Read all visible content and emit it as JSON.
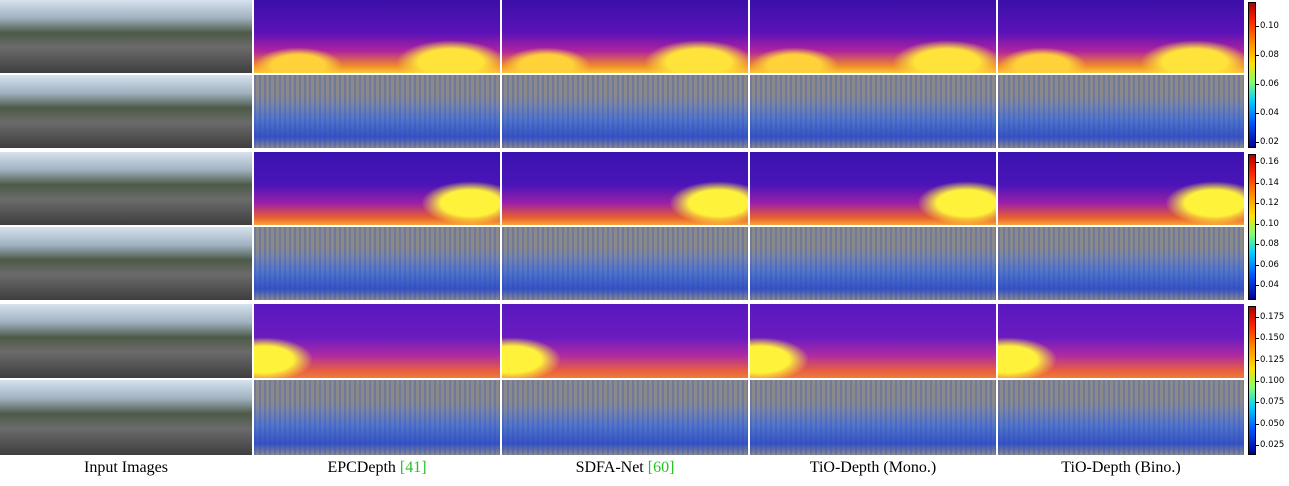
{
  "columns": [
    {
      "label": "Input Images"
    },
    {
      "label": "EPCDepth",
      "ref": "[41]"
    },
    {
      "label": "SDFA-Net",
      "ref": "[60]"
    },
    {
      "label": "TiO-Depth (Mono.)"
    },
    {
      "label": "TiO-Depth (Bino.)"
    }
  ],
  "colorbars": [
    {
      "ticks": [
        "0.10",
        "0.08",
        "0.06",
        "0.04",
        "0.02"
      ]
    },
    {
      "ticks": [
        "0.16",
        "0.14",
        "0.12",
        "0.10",
        "0.08",
        "0.06",
        "0.04"
      ]
    },
    {
      "ticks": [
        "0.175",
        "0.150",
        "0.125",
        "0.100",
        "0.075",
        "0.050",
        "0.025"
      ]
    }
  ]
}
